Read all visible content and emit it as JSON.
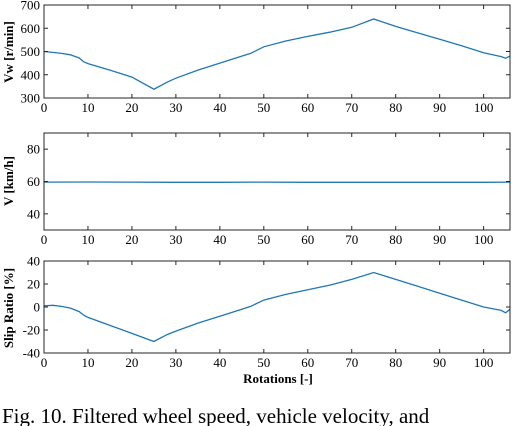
{
  "caption": "Fig. 10. Filtered wheel speed, vehicle velocity, and",
  "chart_data": [
    {
      "type": "line",
      "ylabel": "Vw [r/min]",
      "xlabel": "",
      "xlim": [
        0,
        106
      ],
      "ylim": [
        300,
        700
      ],
      "xticks": [
        0,
        10,
        20,
        30,
        40,
        50,
        60,
        70,
        80,
        90,
        100
      ],
      "yticks": [
        300,
        400,
        500,
        600,
        700
      ],
      "grid": false,
      "series": [
        {
          "color": "#1f77b4",
          "x": [
            0,
            2,
            4,
            6,
            8,
            9,
            10,
            15,
            20,
            25,
            28,
            30,
            35,
            40,
            45,
            47,
            50,
            55,
            60,
            65,
            70,
            75,
            80,
            85,
            90,
            95,
            100,
            104,
            105,
            106
          ],
          "y": [
            500,
            496,
            492,
            486,
            472,
            456,
            448,
            420,
            390,
            338,
            368,
            385,
            420,
            450,
            480,
            492,
            520,
            545,
            565,
            583,
            604,
            640,
            608,
            580,
            553,
            525,
            495,
            478,
            471,
            480
          ]
        }
      ]
    },
    {
      "type": "line",
      "ylabel": "V [km/h]",
      "xlabel": "",
      "xlim": [
        0,
        106
      ],
      "ylim": [
        30,
        90
      ],
      "xticks": [
        0,
        10,
        20,
        30,
        40,
        50,
        60,
        70,
        80,
        90,
        100
      ],
      "yticks": [
        40,
        60,
        80
      ],
      "grid": false,
      "series": [
        {
          "color": "#1f77b4",
          "x": [
            0,
            10,
            20,
            30,
            40,
            50,
            60,
            70,
            80,
            90,
            100,
            106
          ],
          "y": [
            59.6,
            59.7,
            59.6,
            59.5,
            59.5,
            59.6,
            59.5,
            59.5,
            59.5,
            59.5,
            59.5,
            59.6
          ]
        }
      ]
    },
    {
      "type": "line",
      "ylabel": "Slip Ratio [%]",
      "xlabel": "Rotations [-]",
      "xlim": [
        0,
        106
      ],
      "ylim": [
        -40,
        40
      ],
      "xticks": [
        0,
        10,
        20,
        30,
        40,
        50,
        60,
        70,
        80,
        90,
        100
      ],
      "yticks": [
        -40,
        -20,
        0,
        20,
        40
      ],
      "grid": false,
      "series": [
        {
          "color": "#1f77b4",
          "x": [
            0,
            2,
            4,
            6,
            8,
            9,
            10,
            15,
            20,
            25,
            28,
            30,
            35,
            40,
            45,
            47,
            50,
            55,
            60,
            65,
            70,
            75,
            80,
            85,
            90,
            95,
            100,
            104,
            105,
            106
          ],
          "y": [
            1,
            1.5,
            0.5,
            -1,
            -4,
            -7,
            -9,
            -16,
            -23,
            -30,
            -24,
            -21,
            -14,
            -8,
            -2,
            0.5,
            6,
            11,
            15,
            19,
            24,
            30,
            24,
            18,
            12,
            6,
            0,
            -3,
            -5,
            -2
          ]
        }
      ]
    }
  ]
}
